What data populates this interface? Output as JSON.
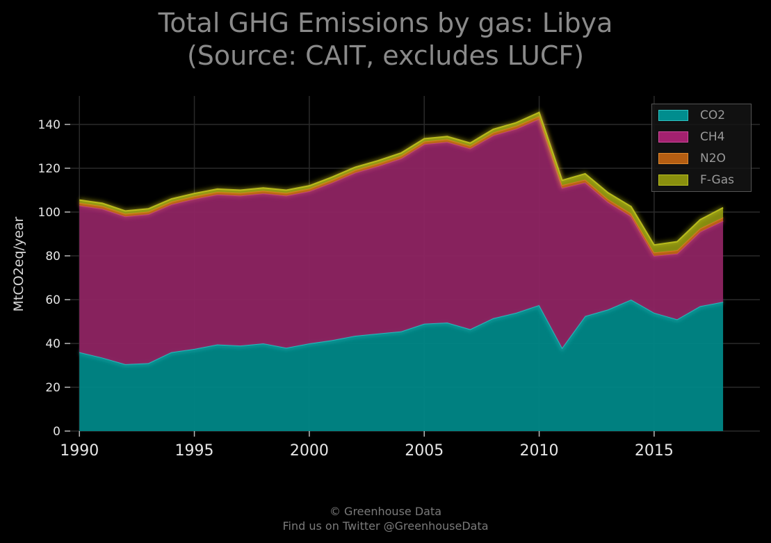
{
  "title_line1": "Total GHG Emissions by gas: Libya",
  "title_line2": "(Source: CAIT, excludes LUCF)",
  "footer_line1": "© Greenhouse Data",
  "footer_line2": "Find us on Twitter @GreenhouseData",
  "chart_data": {
    "type": "area",
    "stacked": true,
    "title": "Total GHG Emissions by gas: Libya\n(Source: CAIT, excludes LUCF)",
    "xlabel": "",
    "ylabel": "MtCO2eq/year",
    "xlim": [
      1989.6,
      2019.6
    ],
    "ylim": [
      0,
      153
    ],
    "grid": true,
    "legend_position": "top-right",
    "x_ticks": [
      1990,
      1995,
      2000,
      2005,
      2010,
      2015
    ],
    "y_ticks": [
      0,
      20,
      40,
      60,
      80,
      100,
      120,
      140
    ],
    "x": [
      1990,
      1991,
      1992,
      1993,
      1994,
      1995,
      1996,
      1997,
      1998,
      1999,
      2000,
      2001,
      2002,
      2003,
      2004,
      2005,
      2006,
      2007,
      2008,
      2009,
      2010,
      2011,
      2012,
      2013,
      2014,
      2015,
      2016,
      2017,
      2018
    ],
    "series": [
      {
        "name": "CO2",
        "color": "#00999a",
        "values": [
          36,
          33.5,
          30.5,
          31,
          36,
          37.5,
          39.5,
          39,
          40,
          38,
          40,
          41.5,
          43.5,
          44.5,
          45.5,
          49,
          49.5,
          46.5,
          51.5,
          54,
          57.5,
          38,
          52.5,
          55.5,
          60,
          54,
          51,
          57,
          59
        ]
      },
      {
        "name": "CH4",
        "color": "#b3267c",
        "values": [
          67,
          68,
          67.5,
          68,
          67.5,
          68.5,
          68.5,
          68.5,
          68.5,
          69.5,
          69.5,
          72,
          74.5,
          76.5,
          79,
          82,
          82.5,
          82.5,
          83.5,
          84,
          85,
          73,
          61,
          49,
          38,
          26,
          30,
          34,
          37
        ]
      },
      {
        "name": "N2O",
        "color": "#c46a10",
        "values": [
          1.2,
          1.2,
          1.2,
          1.2,
          1.2,
          1.2,
          1.2,
          1.2,
          1.2,
          1.2,
          1.2,
          1.2,
          1.2,
          1.2,
          1.2,
          1.2,
          1.2,
          1.2,
          1.3,
          1.3,
          1.3,
          1.3,
          1.3,
          1.3,
          1.3,
          1.5,
          1.5,
          1.5,
          1.5
        ]
      },
      {
        "name": "F-Gas",
        "color": "#9aa10f",
        "values": [
          1.3,
          1.3,
          1.3,
          1.3,
          1.3,
          1.3,
          1.3,
          1.3,
          1.3,
          1.3,
          1.3,
          1.3,
          1.3,
          1.3,
          1.3,
          1.3,
          1.3,
          1.3,
          1.5,
          1.5,
          1.7,
          2.2,
          2.7,
          3,
          3.2,
          3.5,
          4,
          4,
          4.5
        ]
      }
    ]
  }
}
